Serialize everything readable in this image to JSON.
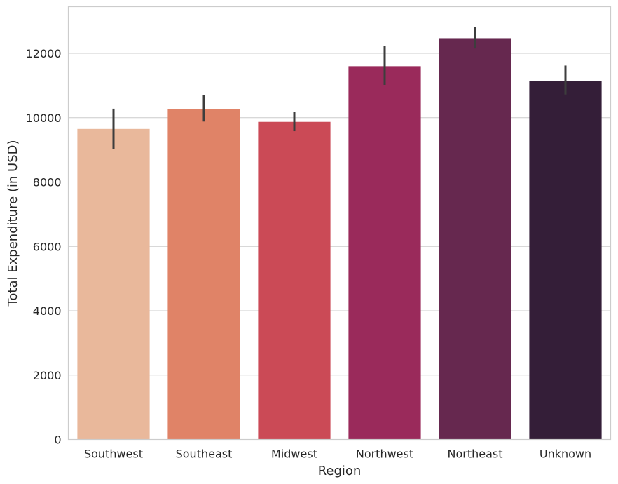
{
  "chart_data": {
    "type": "bar",
    "title": "",
    "xlabel": "Region",
    "ylabel": "Total Expenditure (in USD)",
    "categories": [
      "Southwest",
      "Southeast",
      "Midwest",
      "Northwest",
      "Northeast",
      "Unknown"
    ],
    "values": [
      9650,
      10270,
      9870,
      11600,
      12470,
      11150
    ],
    "error_low": [
      9020,
      9880,
      9580,
      11020,
      12150,
      10720
    ],
    "error_high": [
      10280,
      10700,
      10180,
      12220,
      12820,
      11620
    ],
    "colors": [
      "#e9b89b",
      "#e08367",
      "#cb4a56",
      "#9a2a5b",
      "#66284f",
      "#341e38"
    ],
    "ylim": [
      0,
      13450
    ],
    "yticks": [
      0,
      2000,
      4000,
      6000,
      8000,
      10000,
      12000
    ],
    "grid": true,
    "legend": "none"
  }
}
